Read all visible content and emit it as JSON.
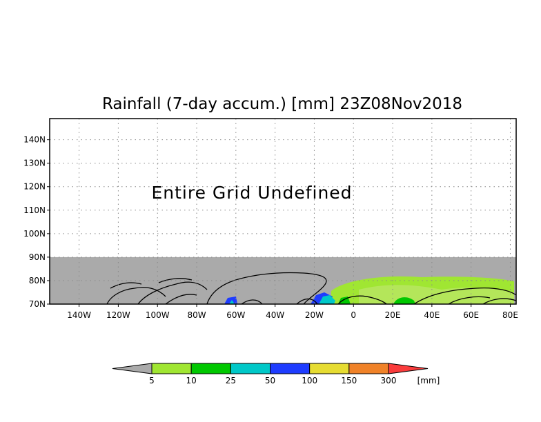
{
  "title": "Rainfall (7-day accum.) [mm] 23Z08Nov2018",
  "message": "Entire Grid Undefined",
  "map": {
    "lon_range": [
      -155,
      83
    ],
    "lat_range": [
      70,
      149
    ],
    "lat_ticks": [
      "140N",
      "130N",
      "120N",
      "110N",
      "100N",
      "90N",
      "80N",
      "70N"
    ],
    "lat_tick_values": [
      140,
      130,
      120,
      110,
      100,
      90,
      80,
      70
    ],
    "lon_ticks": [
      "140W",
      "120W",
      "100W",
      "80W",
      "60W",
      "40W",
      "20W",
      "0",
      "20E",
      "40E",
      "60E",
      "80E"
    ],
    "lon_tick_values": [
      -140,
      -120,
      -100,
      -80,
      -60,
      -40,
      -20,
      0,
      20,
      40,
      60,
      80
    ],
    "undefined_color": "#aaaaaa",
    "grid": "dotted"
  },
  "colorbar": {
    "labels": [
      "5",
      "10",
      "25",
      "50",
      "100",
      "150",
      "300"
    ],
    "unit": "[mm]",
    "under_color": "#aaaaaa",
    "colors": [
      "#a0e632",
      "#00c800",
      "#00c8c8",
      "#1e3cff",
      "#e6dc32",
      "#f08228",
      "#fa3c3c"
    ]
  }
}
